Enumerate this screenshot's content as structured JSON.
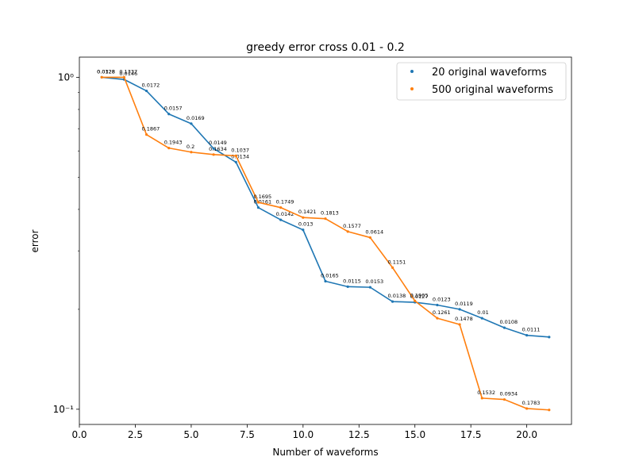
{
  "chart_data": {
    "type": "line",
    "title": "greedy error cross 0.01 - 0.2",
    "xlabel": "Number of waveforms",
    "ylabel": "error",
    "xlim": [
      0,
      22
    ],
    "ylim": [
      0.09,
      1.15
    ],
    "yscale": "log",
    "x_ticks": [
      0.0,
      2.5,
      5.0,
      7.5,
      10.0,
      12.5,
      15.0,
      17.5,
      20.0
    ],
    "x_tick_labels": [
      "0.0",
      "2.5",
      "5.0",
      "7.5",
      "10.0",
      "12.5",
      "15.0",
      "17.5",
      "20.0"
    ],
    "y_ticks": [
      0.1,
      1.0
    ],
    "y_tick_labels": [
      "10⁻¹",
      "10⁰"
    ],
    "legend_position": "upper right",
    "series": [
      {
        "name": "20 original waveforms",
        "color": "#1f77b4",
        "x": [
          1,
          2,
          3,
          4,
          5,
          6,
          7,
          8,
          9,
          10,
          11,
          12,
          13,
          14,
          15,
          16,
          17,
          18,
          19,
          20,
          21
        ],
        "y": [
          1.0,
          0.985,
          0.91,
          0.775,
          0.725,
          0.61,
          0.555,
          0.405,
          0.372,
          0.347,
          0.243,
          0.234,
          0.233,
          0.211,
          0.21,
          0.206,
          0.2,
          0.188,
          0.176,
          0.167,
          0.165
        ],
        "labels": [
          "0.0128",
          "0.0146",
          "0.0172",
          "0.0157",
          "0.0169",
          "0.0149",
          "0.0134",
          "0.0161",
          "0.0142",
          "0.013",
          "0.0165",
          "0.0115",
          "0.0153",
          "0.0138",
          "0.0127",
          "0.0123",
          "0.0119",
          "0.01",
          "0.0108",
          "0.0111",
          ""
        ]
      },
      {
        "name": "500 original waveforms",
        "color": "#ff7f0e",
        "x": [
          1,
          2,
          3,
          4,
          5,
          6,
          7,
          8,
          9,
          10,
          11,
          12,
          13,
          14,
          15,
          16,
          17,
          18,
          19,
          20,
          21
        ],
        "y": [
          1.0,
          1.0,
          0.672,
          0.612,
          0.595,
          0.585,
          0.58,
          0.42,
          0.405,
          0.378,
          0.375,
          0.343,
          0.329,
          0.267,
          0.212,
          0.188,
          0.18,
          0.108,
          0.107,
          0.1005,
          0.0995
        ],
        "labels": [
          "0.0328",
          "0.1337",
          "0.1867",
          "0.1943",
          "0.2",
          "0.1634",
          "0.1037",
          "0.1695",
          "0.1749",
          "0.1421",
          "0.1813",
          "0.1577",
          "0.0614",
          "0.1151",
          "0.1905",
          "0.1261",
          "0.1478",
          "0.1532",
          "0.0934",
          "0.1783",
          ""
        ]
      }
    ]
  }
}
